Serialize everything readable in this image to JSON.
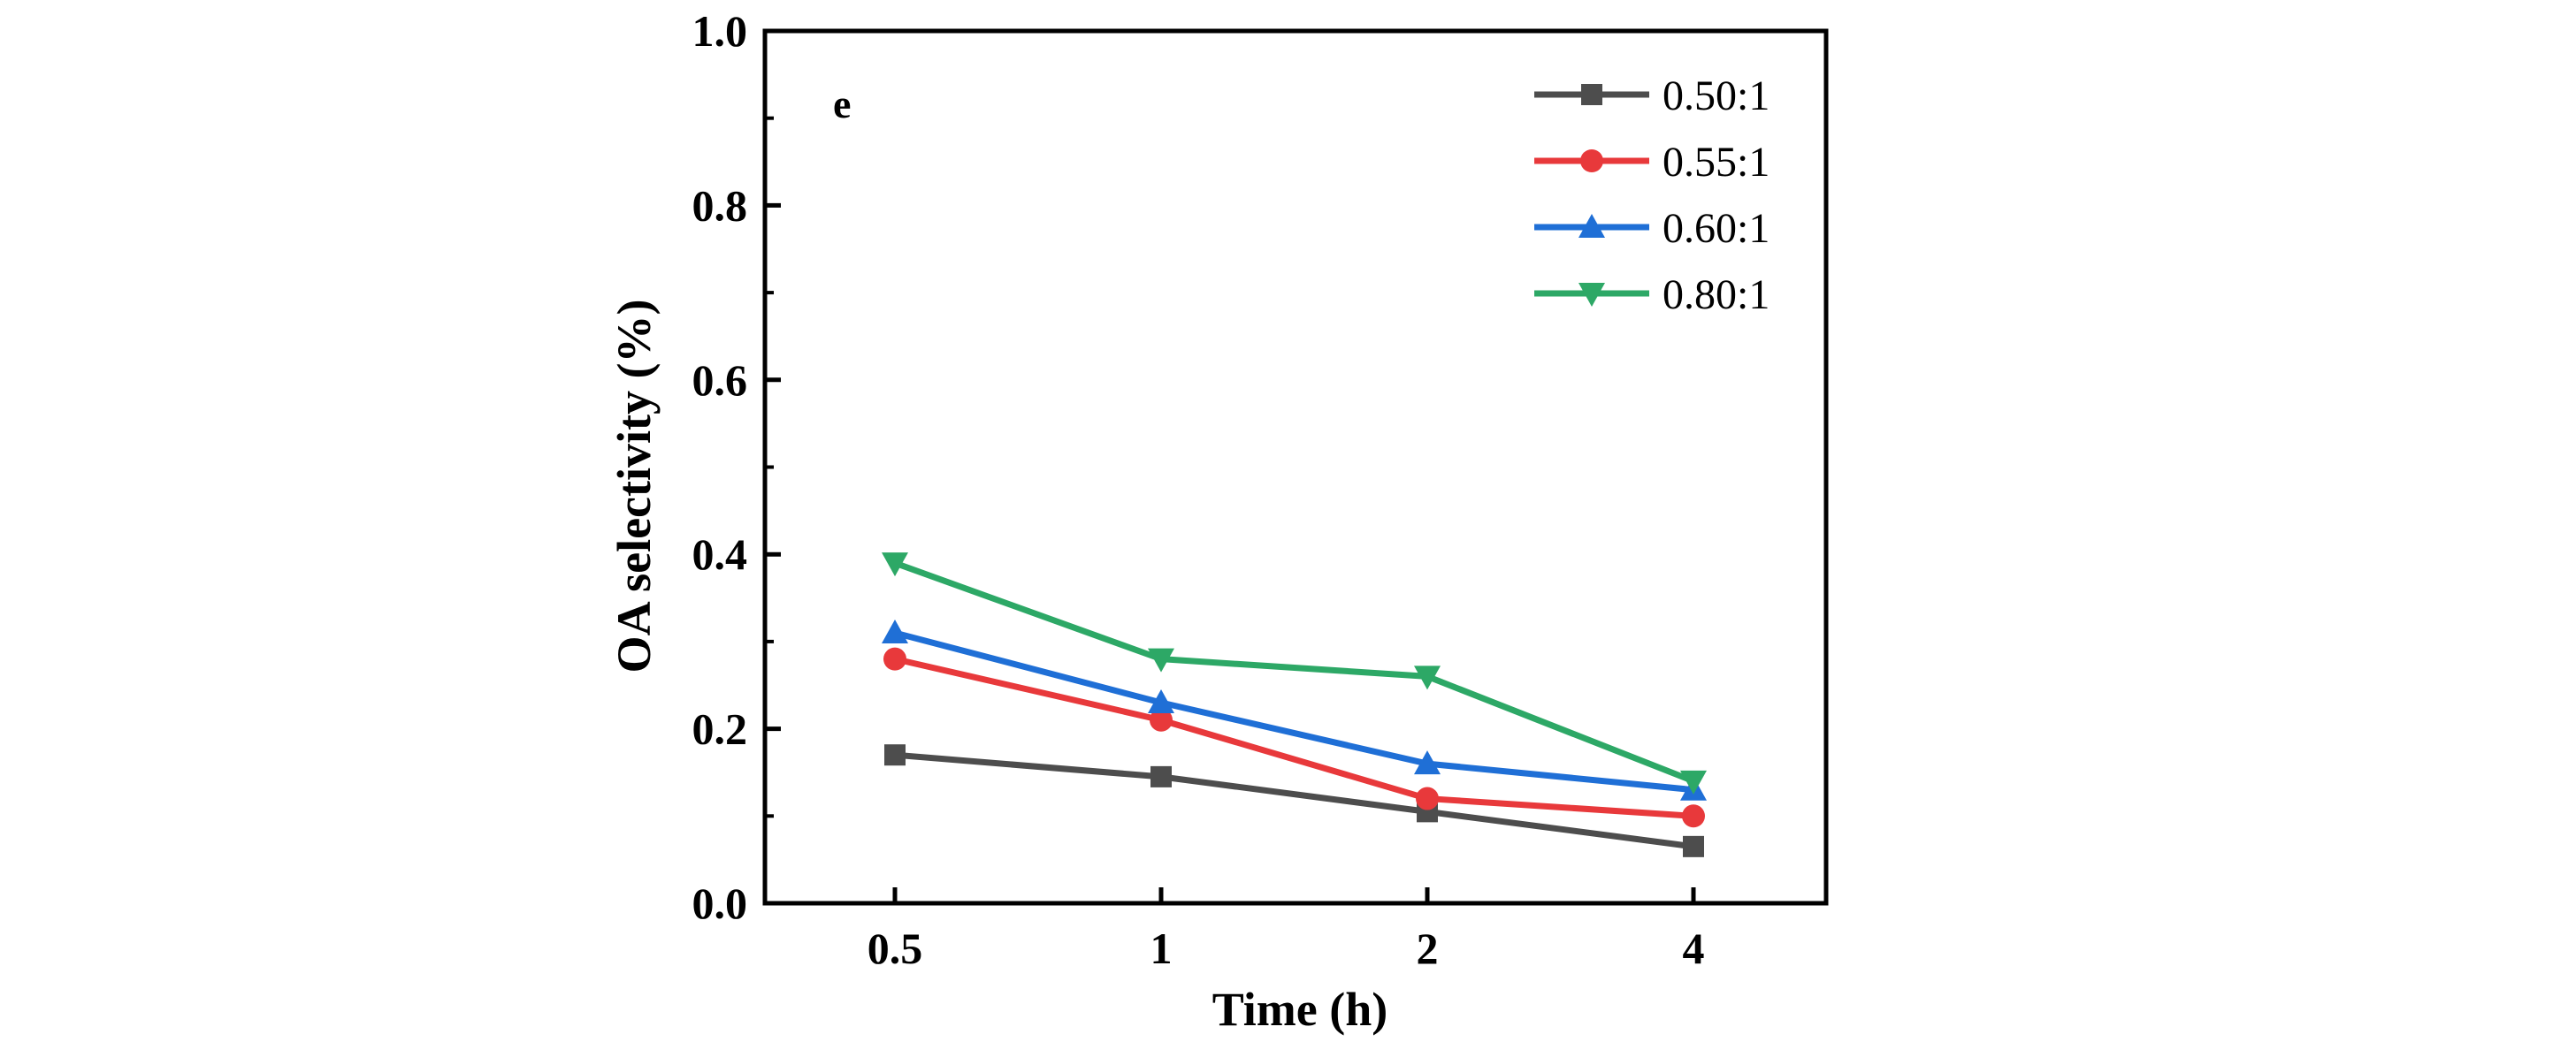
{
  "chart_data": {
    "type": "line",
    "title": "",
    "panel_label": "e",
    "xlabel": "Time (h)",
    "ylabel": "OA selectivity (%)",
    "categories": [
      "0.5",
      "1",
      "2",
      "4"
    ],
    "ylim": [
      0.0,
      1.0
    ],
    "yticks": [
      "0.0",
      "0.2",
      "0.4",
      "0.6",
      "0.8",
      "1.0"
    ],
    "ytick_values": [
      0.0,
      0.2,
      0.4,
      0.6,
      0.8,
      1.0
    ],
    "grid": false,
    "legend_position": "top-right",
    "series": [
      {
        "name": "0.50:1",
        "color": "#4d4d4d",
        "marker": "square",
        "values": [
          0.17,
          0.145,
          0.105,
          0.065
        ]
      },
      {
        "name": "0.55:1",
        "color": "#e8393b",
        "marker": "circle",
        "values": [
          0.28,
          0.21,
          0.12,
          0.1
        ]
      },
      {
        "name": "0.60:1",
        "color": "#1f6fd6",
        "marker": "triangle-up",
        "values": [
          0.31,
          0.23,
          0.16,
          0.13
        ]
      },
      {
        "name": "0.80:1",
        "color": "#2da866",
        "marker": "triangle-down",
        "values": [
          0.39,
          0.28,
          0.26,
          0.14
        ]
      }
    ]
  }
}
